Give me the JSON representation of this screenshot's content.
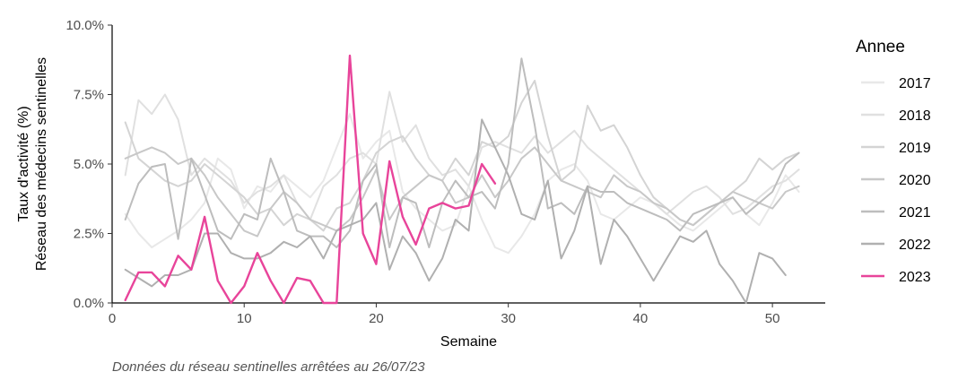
{
  "chart_data": {
    "type": "line",
    "xlabel": "Semaine",
    "ylabel_line1": "Taux d'activité (%)",
    "ylabel_line2": "Réseau des médecins sentinelles",
    "xlim": [
      0,
      54
    ],
    "ylim": [
      0,
      10
    ],
    "x_ticks": [
      0,
      10,
      20,
      30,
      40,
      50
    ],
    "y_ticks": [
      0,
      2.5,
      5,
      7.5,
      10
    ],
    "y_tick_labels": [
      "0.0%",
      "2.5%",
      "5.0%",
      "7.5%",
      "10.0%"
    ],
    "legend_title": "Annee",
    "legend_position": "right",
    "caption": "Données du réseau sentinelles arrêtées au  26/07/23",
    "series": [
      {
        "name": "2017",
        "color": "#e8e8e8",
        "x_start": 1,
        "values": [
          3.2,
          2.5,
          2.0,
          2.3,
          2.6,
          3.0,
          3.6,
          5.2,
          4.8,
          3.4,
          4.2,
          4.0,
          4.6,
          4.2,
          3.8,
          4.4,
          5.6,
          6.8,
          5.2,
          5.8,
          6.2,
          4.0,
          3.4,
          3.0,
          2.6,
          2.8,
          4.2,
          3.0,
          2.0,
          1.8,
          2.4,
          3.2,
          4.4,
          4.8,
          5.0,
          4.4,
          3.2,
          3.0,
          3.4,
          3.8,
          3.6,
          3.2,
          2.8,
          2.6,
          3.0,
          3.4,
          3.8,
          3.2,
          2.8,
          3.6,
          4.6,
          4.0
        ]
      },
      {
        "name": "2018",
        "color": "#e0e0e0",
        "x_start": 1,
        "values": [
          4.6,
          7.3,
          6.8,
          7.5,
          6.6,
          4.6,
          5.2,
          4.8,
          4.4,
          3.6,
          4.0,
          4.2,
          4.6,
          3.6,
          3.0,
          4.2,
          4.6,
          5.2,
          5.4,
          5.0,
          7.6,
          5.8,
          6.4,
          5.2,
          4.6,
          4.8,
          4.2,
          5.6,
          5.8,
          5.6,
          5.4,
          6.0,
          5.4,
          5.8,
          6.2,
          5.6,
          5.2,
          4.8,
          4.4,
          4.0,
          3.6,
          3.2,
          3.6,
          4.0,
          4.2,
          3.8,
          3.2,
          3.4,
          3.8,
          4.2,
          4.4,
          4.8
        ]
      },
      {
        "name": "2019",
        "color": "#d4d4d4",
        "x_start": 1,
        "values": [
          6.5,
          5.2,
          4.8,
          4.4,
          4.2,
          4.4,
          5.0,
          4.6,
          4.2,
          3.8,
          3.2,
          3.4,
          2.8,
          3.2,
          3.0,
          2.6,
          3.4,
          3.6,
          4.4,
          5.4,
          5.8,
          6.0,
          5.2,
          4.6,
          4.4,
          5.2,
          4.6,
          5.8,
          5.6,
          6.0,
          7.2,
          8.0,
          6.0,
          4.4,
          4.8,
          7.1,
          6.2,
          6.4,
          5.6,
          4.6,
          3.8,
          3.4,
          3.0,
          2.8,
          3.2,
          3.6,
          4.0,
          4.4,
          5.2,
          4.8,
          5.2,
          5.4
        ]
      },
      {
        "name": "2020",
        "color": "#c8c8c8",
        "x_start": 1,
        "values": [
          5.2,
          5.4,
          5.6,
          5.4,
          5.0,
          5.2,
          4.6,
          3.8,
          3.2,
          2.6,
          2.4,
          3.4,
          4.0,
          3.6,
          3.0,
          2.8,
          2.6,
          3.0,
          3.8,
          4.8,
          3.0,
          3.8,
          4.2,
          4.6,
          4.4,
          3.6,
          3.8,
          4.6,
          3.8,
          4.4,
          5.2,
          5.6,
          5.0,
          4.4,
          4.2,
          4.0,
          3.8,
          4.6,
          4.2,
          4.0,
          3.6,
          3.4,
          3.0,
          2.8,
          3.2,
          3.6,
          4.0,
          3.8,
          3.6,
          3.4,
          4.0,
          4.2
        ]
      },
      {
        "name": "2021",
        "color": "#bdbdbd",
        "x_start": 1,
        "values": [
          3.0,
          4.3,
          4.9,
          5.0,
          2.3,
          5.2,
          3.9,
          2.6,
          2.3,
          3.2,
          3.0,
          5.2,
          4.0,
          2.6,
          2.4,
          2.4,
          2.0,
          2.6,
          4.4,
          5.0,
          2.0,
          3.8,
          3.6,
          2.0,
          3.6,
          4.4,
          3.8,
          4.0,
          3.4,
          5.0,
          8.8,
          6.4,
          3.4,
          3.6,
          3.2,
          4.2,
          4.0,
          4.0,
          3.6,
          3.4,
          3.2,
          3.0,
          2.6,
          3.2,
          3.4,
          3.6,
          3.8,
          3.2,
          3.6,
          4.0,
          5.0,
          5.4
        ]
      },
      {
        "name": "2022",
        "color": "#b0b0b0",
        "x_start": 1,
        "values": [
          1.2,
          0.9,
          0.6,
          1.0,
          1.0,
          1.2,
          2.5,
          2.5,
          1.8,
          1.6,
          1.6,
          1.8,
          2.2,
          2.0,
          2.4,
          1.6,
          2.6,
          2.8,
          3.0,
          3.6,
          1.2,
          2.4,
          1.8,
          0.8,
          1.6,
          3.0,
          2.6,
          6.6,
          5.6,
          4.6,
          3.2,
          3.0,
          4.4,
          1.6,
          2.6,
          4.2,
          1.4,
          3.0,
          2.4,
          1.6,
          0.8,
          1.6,
          2.4,
          2.2,
          2.6,
          1.4,
          0.8,
          0.0,
          1.8,
          1.6,
          1.0
        ]
      },
      {
        "name": "2023",
        "color": "#e8449a",
        "x_start": 1,
        "values": [
          0.1,
          1.1,
          1.1,
          0.6,
          1.7,
          1.2,
          3.1,
          0.8,
          0.0,
          0.6,
          1.8,
          0.8,
          0.0,
          0.9,
          0.8,
          0.0,
          0.0,
          8.9,
          2.5,
          1.4,
          5.1,
          3.1,
          2.1,
          3.4,
          3.6,
          3.4,
          3.5,
          5.0,
          4.3
        ]
      }
    ]
  }
}
